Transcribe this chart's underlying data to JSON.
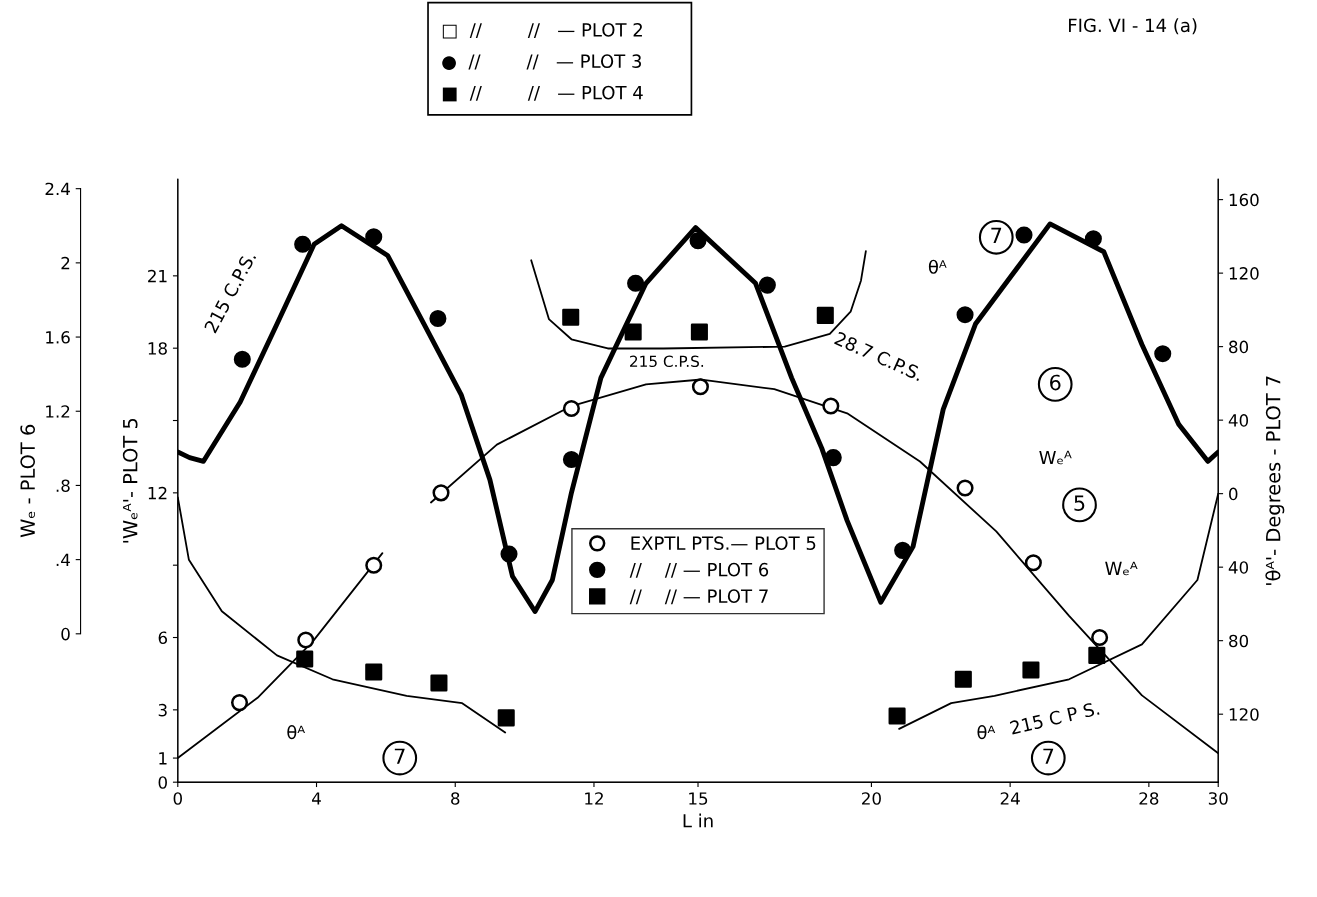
{
  "chart_data": {
    "type": "scatter",
    "title": "FIG. VI - 14 (a)",
    "xlabel": "L in",
    "ylabel": "'Wₑᴬ'- PLOT 5",
    "y2label": "'θᴬ'- Degrees - PLOT 7",
    "y3label": "Wₑ - PLOT 6",
    "xlim": [
      0,
      30
    ],
    "xticks": [
      0,
      4,
      8,
      12,
      15,
      20,
      24,
      28,
      30
    ],
    "ylim": [
      0,
      25
    ],
    "yticks": [
      0,
      1,
      3,
      6,
      {
        "value": 9,
        "label": null
      },
      12,
      {
        "value": 15,
        "label": null
      },
      18,
      21
    ],
    "y2lim": [
      -157,
      171
    ],
    "y2ticks": [
      {
        "value": -120,
        "label": "120"
      },
      {
        "value": -80,
        "label": "80"
      },
      {
        "value": -40,
        "label": "40"
      },
      0,
      40,
      80,
      120,
      160
    ],
    "y3lim": [
      -0.8,
      2.45
    ],
    "y3ticks": [
      0,
      {
        "value": 0.4,
        "label": ".4"
      },
      {
        "value": 0.8,
        "label": ".8"
      },
      1.2,
      1.6,
      2,
      2.4
    ],
    "grid": false,
    "legend": "center",
    "series": [
      {
        "name": "EXPTL PTS.— PLOT 5",
        "color": "#ffffff",
        "marker": "circle",
        "x": [
          1.78,
          3.69,
          5.65,
          7.59,
          11.35,
          15.07,
          18.83,
          22.7,
          24.67,
          26.58
        ],
        "values": [
          3.3,
          5.9,
          9.0,
          12.0,
          15.5,
          16.4,
          15.6,
          12.2,
          9.1,
          6.0
        ]
      },
      {
        "name": "//    // — PLOT 6",
        "color": "#000000",
        "marker": "circle",
        "axis": "y3",
        "x": [
          1.86,
          3.6,
          5.65,
          7.5,
          9.55,
          11.35,
          13.2,
          15.0,
          17.0,
          18.9,
          20.9,
          22.7,
          24.4,
          26.4,
          28.4
        ],
        "values": [
          1.48,
          2.1,
          2.14,
          1.7,
          0.43,
          0.94,
          1.89,
          2.12,
          1.88,
          0.95,
          0.45,
          1.72,
          2.15,
          2.13,
          1.51
        ]
      },
      {
        "name": "//    // — PLOT 7",
        "color": "#000000",
        "marker": "square",
        "axis": "y2",
        "x": [
          3.66,
          5.65,
          7.53,
          9.47,
          11.33,
          13.13,
          15.04,
          18.67,
          20.74,
          22.65,
          24.6,
          26.5
        ],
        "values": [
          -90,
          -97,
          -103,
          -122,
          96,
          88,
          88,
          97,
          -121,
          -101,
          -96,
          -88
        ]
      },
      {
        "type": "line",
        "color": "#000000",
        "x": [
          0,
          2.3,
          3.9,
          5.9
        ],
        "values": [
          1.0,
          3.5,
          5.85,
          9.5
        ]
      },
      {
        "type": "line",
        "color": "#000000",
        "x": [
          7.3,
          9.2,
          11.35,
          13.5,
          15.1,
          17.2,
          19.3,
          21.4,
          23.6,
          25.7,
          27.8,
          30
        ],
        "values": [
          11.6,
          14.0,
          15.6,
          16.5,
          16.7,
          16.3,
          15.3,
          13.3,
          10.4,
          6.9,
          3.6,
          1.2
        ]
      },
      {
        "type": "line",
        "color": "#000000",
        "axis": "y3",
        "x": [
          0,
          0.34,
          0.74,
          1.8,
          2.86,
          3.93,
          4.72,
          6.05,
          7.1,
          8.17,
          9.0,
          9.65,
          10.3,
          10.8,
          11.35,
          12.2,
          13.5,
          14.93,
          16.66,
          17.7,
          18.57,
          19.3,
          20.27,
          21.2,
          22.07,
          23.0,
          25.15,
          26.7,
          27.8,
          28.86,
          29.7,
          30.0
        ],
        "values": [
          0.98,
          0.95,
          0.93,
          1.25,
          1.67,
          2.1,
          2.2,
          2.04,
          1.67,
          1.29,
          0.83,
          0.31,
          0.12,
          0.29,
          0.76,
          1.38,
          1.89,
          2.19,
          1.89,
          1.38,
          1.0,
          0.61,
          0.17,
          0.47,
          1.21,
          1.67,
          2.21,
          2.06,
          1.56,
          1.13,
          0.93,
          0.98
        ]
      },
      {
        "type": "line",
        "color": "#000000",
        "axis": "y2",
        "x": [
          0,
          0.32,
          1.27,
          2.86,
          4.46,
          6.6,
          8.2,
          9.44
        ],
        "values": [
          -2,
          -36,
          -64,
          -88,
          -101,
          -110,
          -114,
          -130
        ]
      },
      {
        "type": "line",
        "color": "#000000",
        "axis": "y2",
        "x": [
          10.19,
          10.7,
          11.35,
          12.4,
          14.0,
          17.5,
          18.8,
          19.4,
          19.7,
          19.84
        ],
        "values": [
          127,
          95,
          84,
          79,
          79,
          80,
          87,
          99,
          116,
          132
        ]
      },
      {
        "type": "line",
        "color": "#000000",
        "axis": "y2",
        "x": [
          20.8,
          22.3,
          23.55,
          25.7,
          27.8,
          29.4,
          30
        ],
        "values": [
          -128,
          -114,
          -110,
          -101,
          -82,
          -47,
          0
        ]
      }
    ],
    "annotations": [
      "□  //        //   — PLOT 2",
      "●  //        //   — PLOT 3",
      "■  //        //   — PLOT 4",
      "215 C.P.S.",
      "215 C.P.S.",
      "28.7 C.P.S.",
      "215 C P S.",
      "Wₑᴬ",
      "Wₑᴬ",
      "θᴬ",
      "θᴬ",
      "θᴬ",
      {
        "text": "7",
        "x": 23.6,
        "y": 22.6
      },
      {
        "text": "6",
        "x": 25.3,
        "y": 16.5
      },
      {
        "text": "5",
        "x": 26.0,
        "y": 11.5
      },
      {
        "text": "7",
        "x": 6.4,
        "y": 1.0
      },
      {
        "text": "7",
        "x": 25.1,
        "y": 1.0
      }
    ]
  }
}
